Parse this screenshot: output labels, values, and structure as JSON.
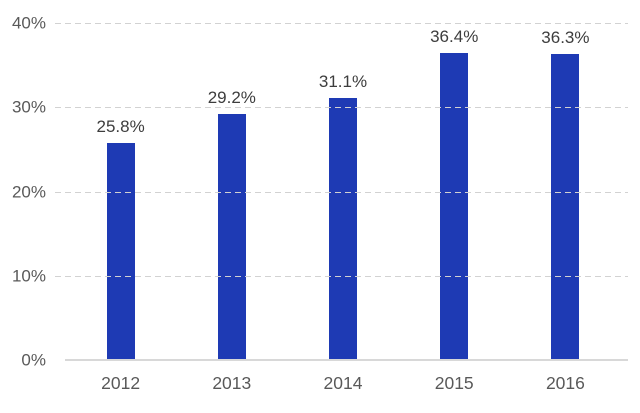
{
  "chart_data": {
    "type": "bar",
    "title": "",
    "xlabel": "",
    "ylabel": "",
    "categories": [
      "2012",
      "2013",
      "2014",
      "2015",
      "2016"
    ],
    "values": [
      25.8,
      29.2,
      31.1,
      36.4,
      36.3
    ],
    "value_labels": [
      "25.8%",
      "29.2%",
      "31.1%",
      "36.4%",
      "36.3%"
    ],
    "ylim": [
      0,
      40
    ],
    "yticks": [
      {
        "value": 0,
        "label": "0%"
      },
      {
        "value": 10,
        "label": "10%"
      },
      {
        "value": 20,
        "label": "20%"
      },
      {
        "value": 30,
        "label": "30%"
      },
      {
        "value": 40,
        "label": "40%"
      }
    ],
    "grid": "horizontal-dashed",
    "legend": "none",
    "colors": {
      "bar": "#1e3ab4",
      "gridline": "#d2d2d2",
      "axis_line": "#d8d8d8",
      "axis_label": "#595959",
      "value_label": "#3d3d3d",
      "background": "#ffffff"
    }
  }
}
